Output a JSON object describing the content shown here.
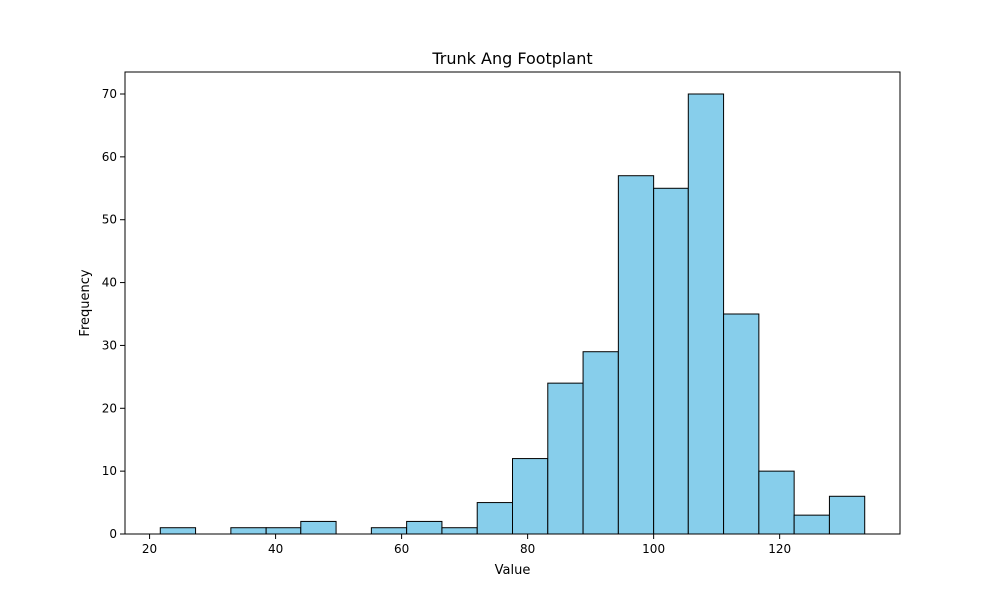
{
  "chart_data": {
    "type": "bar",
    "title": "Trunk Ang Footplant",
    "xlabel": "Value",
    "ylabel": "Frequency",
    "bar_color": "#87ceeb",
    "edge_color": "#000000",
    "xlim": [
      16.1,
      139.1
    ],
    "ylim": [
      0,
      73.5
    ],
    "xticks": [
      20,
      40,
      60,
      80,
      100,
      120
    ],
    "yticks": [
      0,
      10,
      20,
      30,
      40,
      50,
      60,
      70
    ],
    "bins": [
      {
        "x0": 21.7,
        "x1": 27.3,
        "count": 1
      },
      {
        "x0": 27.3,
        "x1": 32.9,
        "count": 0
      },
      {
        "x0": 32.9,
        "x1": 38.5,
        "count": 1
      },
      {
        "x0": 38.5,
        "x1": 44.0,
        "count": 1
      },
      {
        "x0": 44.0,
        "x1": 49.6,
        "count": 2
      },
      {
        "x0": 49.6,
        "x1": 55.2,
        "count": 0
      },
      {
        "x0": 55.2,
        "x1": 60.8,
        "count": 1
      },
      {
        "x0": 60.8,
        "x1": 66.4,
        "count": 2
      },
      {
        "x0": 66.4,
        "x1": 72.0,
        "count": 1
      },
      {
        "x0": 72.0,
        "x1": 77.6,
        "count": 5
      },
      {
        "x0": 77.6,
        "x1": 83.2,
        "count": 12
      },
      {
        "x0": 83.2,
        "x1": 88.8,
        "count": 24
      },
      {
        "x0": 88.8,
        "x1": 94.4,
        "count": 29
      },
      {
        "x0": 94.4,
        "x1": 100.0,
        "count": 57
      },
      {
        "x0": 100.0,
        "x1": 105.5,
        "count": 55
      },
      {
        "x0": 105.5,
        "x1": 111.1,
        "count": 70
      },
      {
        "x0": 111.1,
        "x1": 116.7,
        "count": 35
      },
      {
        "x0": 116.7,
        "x1": 122.3,
        "count": 10
      },
      {
        "x0": 122.3,
        "x1": 127.9,
        "count": 3
      },
      {
        "x0": 127.9,
        "x1": 133.5,
        "count": 6
      }
    ]
  }
}
